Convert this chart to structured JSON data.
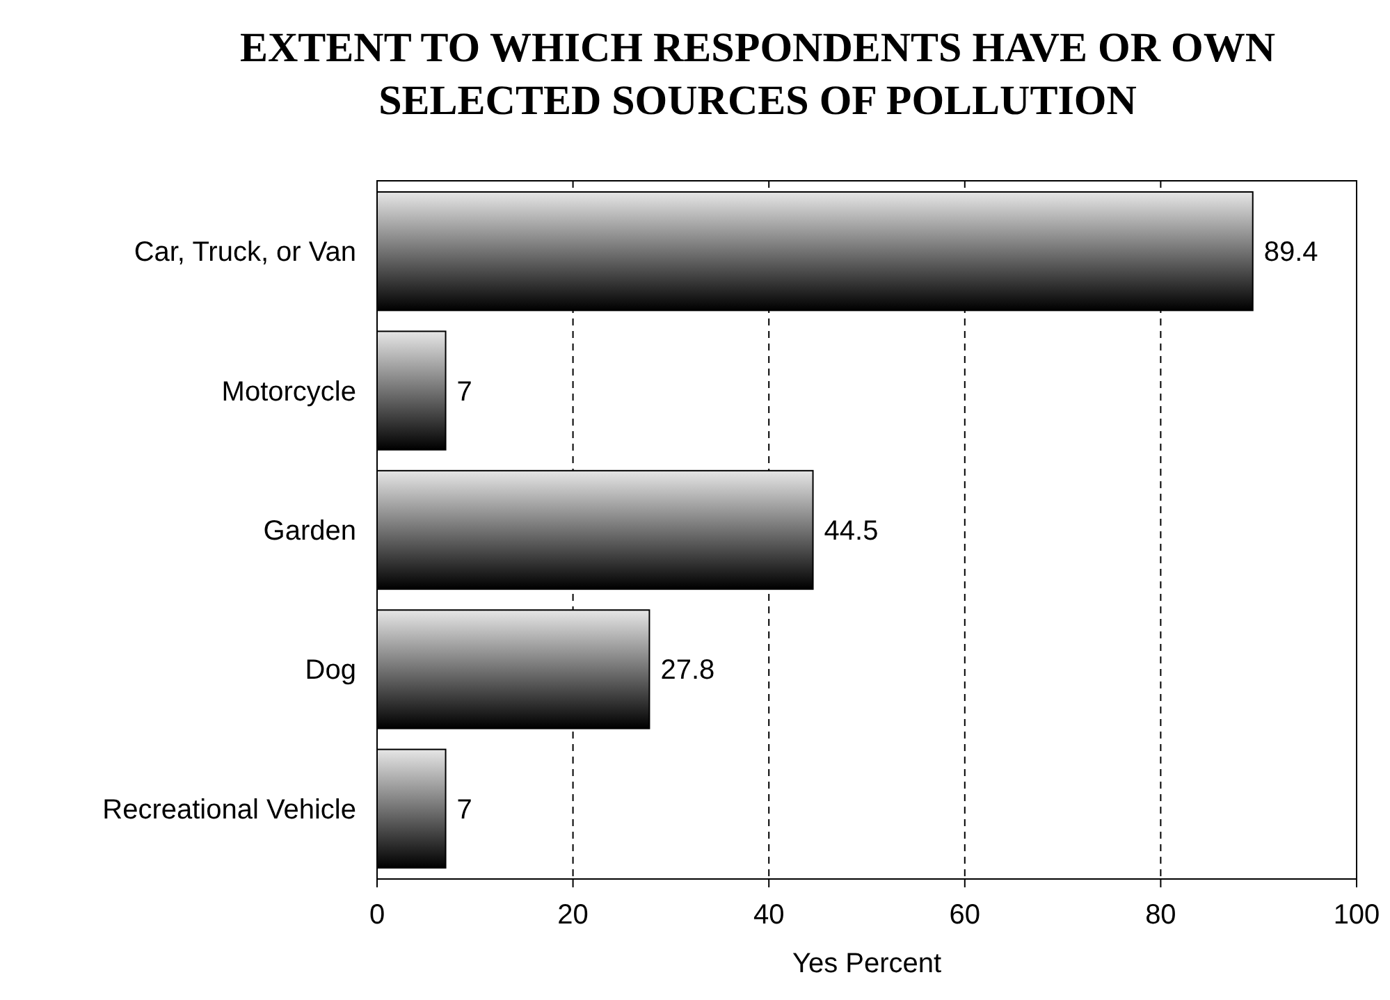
{
  "chart_data": {
    "type": "bar",
    "orientation": "horizontal",
    "title": "EXTENT TO WHICH RESPONDENTS HAVE OR OWN SELECTED SOURCES OF POLLUTION",
    "xlabel": "Yes Percent",
    "categories": [
      "Car, Truck, or Van",
      "Motorcycle",
      "Garden",
      "Dog",
      "Recreational Vehicle"
    ],
    "values": [
      89.4,
      7,
      44.5,
      27.8,
      7
    ],
    "color": "#000000",
    "xlim": [
      0,
      100
    ],
    "xticks": [
      0,
      20,
      40,
      60,
      80,
      100
    ],
    "grid": "x",
    "line_style": "dashed",
    "data_labels": true
  }
}
